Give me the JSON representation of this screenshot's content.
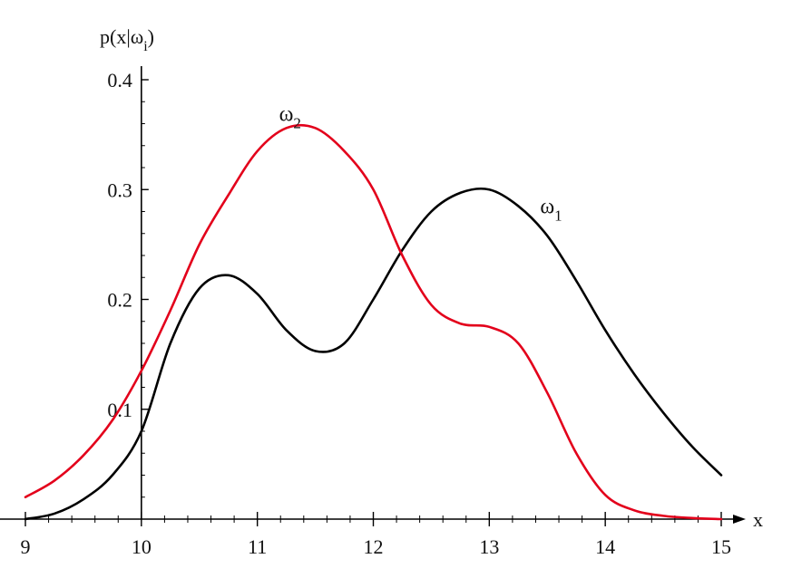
{
  "chart_data": {
    "type": "line",
    "title": "",
    "xlabel": "x",
    "ylabel": "p(x|ω",
    "ylabel_sub": "i",
    "ylabel_close": ")",
    "xlim": [
      9,
      15
    ],
    "ylim": [
      0,
      0.4
    ],
    "x_ticks": [
      9,
      10,
      11,
      12,
      13,
      14,
      15
    ],
    "y_ticks": [
      0.1,
      0.2,
      0.3,
      0.4
    ],
    "y_tick_labels": [
      "0.1",
      "0.2",
      "0.3",
      "0.4"
    ],
    "y_axis_at_x": 10,
    "grid": false,
    "series": [
      {
        "name": "ω",
        "subscript": "1",
        "color": "#000000",
        "x": [
          9.0,
          9.25,
          9.5,
          9.75,
          10.0,
          10.25,
          10.5,
          10.75,
          11.0,
          11.25,
          11.5,
          11.75,
          12.0,
          12.25,
          12.5,
          12.75,
          13.0,
          13.25,
          13.5,
          13.75,
          14.0,
          14.25,
          14.5,
          14.75,
          15.0
        ],
        "y": [
          0.0,
          0.005,
          0.018,
          0.04,
          0.08,
          0.16,
          0.21,
          0.222,
          0.205,
          0.172,
          0.153,
          0.16,
          0.2,
          0.245,
          0.28,
          0.297,
          0.3,
          0.285,
          0.258,
          0.217,
          0.172,
          0.132,
          0.097,
          0.066,
          0.04
        ]
      },
      {
        "name": "ω",
        "subscript": "2",
        "color": "#e3001b",
        "x": [
          9.0,
          9.25,
          9.5,
          9.75,
          10.0,
          10.25,
          10.5,
          10.75,
          11.0,
          11.25,
          11.5,
          11.75,
          12.0,
          12.25,
          12.5,
          12.75,
          13.0,
          13.25,
          13.5,
          13.75,
          14.0,
          14.25,
          14.5,
          14.75,
          15.0
        ],
        "y": [
          0.02,
          0.035,
          0.058,
          0.09,
          0.135,
          0.19,
          0.25,
          0.295,
          0.335,
          0.356,
          0.356,
          0.335,
          0.3,
          0.24,
          0.195,
          0.178,
          0.175,
          0.16,
          0.115,
          0.06,
          0.022,
          0.008,
          0.003,
          0.001,
          0.0
        ]
      }
    ],
    "series_label_positions": [
      "near-peak-right",
      "above-peak"
    ]
  }
}
